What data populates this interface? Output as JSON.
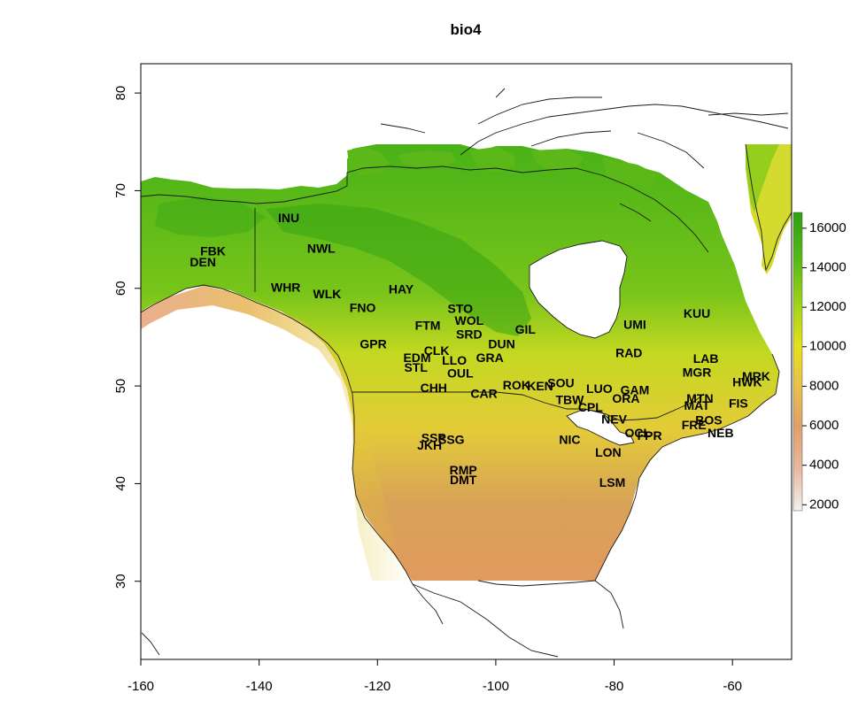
{
  "chart_data": {
    "type": "raster map",
    "title": "bio4",
    "xlim": [
      -160,
      -50
    ],
    "ylim": [
      22,
      83
    ],
    "x_ticks": [
      -160,
      -140,
      -120,
      -100,
      -80,
      -60
    ],
    "x_tick_labels": [
      "-160",
      "-140",
      "-120",
      "-100",
      "-80",
      "-60"
    ],
    "y_ticks": [
      30,
      40,
      50,
      60,
      70,
      80
    ],
    "y_tick_labels": [
      "30",
      "40",
      "50",
      "60",
      "70",
      "80"
    ],
    "legend": {
      "placement": "right",
      "range": [
        1700,
        16800
      ],
      "ticks": [
        2000,
        4000,
        6000,
        8000,
        10000,
        12000,
        14000,
        16000
      ],
      "tick_labels": [
        "2000",
        "4000",
        "6000",
        "8000",
        "10000",
        "12000",
        "14000",
        "16000"
      ],
      "colors": [
        "#f2f2f2",
        "#e8b9a0",
        "#e09f6a",
        "#e6c24a",
        "#e6e01a",
        "#a6d51a",
        "#55bb14",
        "#2f9e14"
      ]
    },
    "sites": [
      {
        "label": "INU",
        "lon": -135,
        "lat": 67.1
      },
      {
        "label": "FBK",
        "lon": -147.8,
        "lat": 63.7
      },
      {
        "label": "DEN",
        "lon": -149.5,
        "lat": 62.6
      },
      {
        "label": "NWL",
        "lon": -129.5,
        "lat": 64.0
      },
      {
        "label": "HAY",
        "lon": -116,
        "lat": 59.8
      },
      {
        "label": "WHR",
        "lon": -135.5,
        "lat": 60.0
      },
      {
        "label": "WLK",
        "lon": -128.5,
        "lat": 59.3
      },
      {
        "label": "FNO",
        "lon": -122.5,
        "lat": 57.9
      },
      {
        "label": "STO",
        "lon": -106,
        "lat": 57.8
      },
      {
        "label": "WOL",
        "lon": -104.5,
        "lat": 56.6
      },
      {
        "label": "FTM",
        "lon": -111.5,
        "lat": 56.1
      },
      {
        "label": "SRD",
        "lon": -104.5,
        "lat": 55.2
      },
      {
        "label": "GIL",
        "lon": -95,
        "lat": 55.7
      },
      {
        "label": "DUN",
        "lon": -99,
        "lat": 54.2
      },
      {
        "label": "GPR",
        "lon": -120.7,
        "lat": 54.2
      },
      {
        "label": "CLK",
        "lon": -110,
        "lat": 53.5
      },
      {
        "label": "EDM",
        "lon": -113.3,
        "lat": 52.8
      },
      {
        "label": "LLO",
        "lon": -107,
        "lat": 52.5
      },
      {
        "label": "STL",
        "lon": -113.5,
        "lat": 51.8
      },
      {
        "label": "OUL",
        "lon": -106,
        "lat": 51.2
      },
      {
        "label": "GRA",
        "lon": -101,
        "lat": 52.8
      },
      {
        "label": "CHH",
        "lon": -110.5,
        "lat": 49.7
      },
      {
        "label": "CAR",
        "lon": -102,
        "lat": 49.1
      },
      {
        "label": "ROK",
        "lon": -96.5,
        "lat": 50.0
      },
      {
        "label": "KEN",
        "lon": -92.5,
        "lat": 49.9
      },
      {
        "label": "SOU",
        "lon": -89,
        "lat": 50.2
      },
      {
        "label": "LUO",
        "lon": -82.5,
        "lat": 49.6
      },
      {
        "label": "TBW",
        "lon": -87.5,
        "lat": 48.5
      },
      {
        "label": "UMI",
        "lon": -76.5,
        "lat": 56.2
      },
      {
        "label": "RAD",
        "lon": -77.5,
        "lat": 53.3
      },
      {
        "label": "KUU",
        "lon": -66,
        "lat": 57.3
      },
      {
        "label": "LAB",
        "lon": -64.5,
        "lat": 52.7
      },
      {
        "label": "MGR",
        "lon": -66,
        "lat": 51.3
      },
      {
        "label": "GAM",
        "lon": -76.5,
        "lat": 49.5
      },
      {
        "label": "ORA",
        "lon": -78,
        "lat": 48.6
      },
      {
        "label": "CPL",
        "lon": -84,
        "lat": 47.7
      },
      {
        "label": "MTN",
        "lon": -65.5,
        "lat": 48.6
      },
      {
        "label": "MAT",
        "lon": -66,
        "lat": 47.9
      },
      {
        "label": "MRK",
        "lon": -56,
        "lat": 50.9
      },
      {
        "label": "HWK",
        "lon": -57.5,
        "lat": 50.3
      },
      {
        "label": "FIS",
        "lon": -59,
        "lat": 48.1
      },
      {
        "label": "FRE",
        "lon": -66.5,
        "lat": 45.9
      },
      {
        "label": "BOS",
        "lon": -64,
        "lat": 46.4
      },
      {
        "label": "NEB",
        "lon": -62,
        "lat": 45.1
      },
      {
        "label": "NEV",
        "lon": -80,
        "lat": 46.5
      },
      {
        "label": "OCL",
        "lon": -76,
        "lat": 45.1
      },
      {
        "label": "FPR",
        "lon": -74,
        "lat": 44.8
      },
      {
        "label": "NIC",
        "lon": -87.5,
        "lat": 44.4
      },
      {
        "label": "LON",
        "lon": -81,
        "lat": 43.1
      },
      {
        "label": "SSP",
        "lon": -110.5,
        "lat": 44.6
      },
      {
        "label": "JKH",
        "lon": -111.2,
        "lat": 43.8
      },
      {
        "label": "SSG",
        "lon": -107.5,
        "lat": 44.4
      },
      {
        "label": "RMP",
        "lon": -105.5,
        "lat": 41.3
      },
      {
        "label": "DMT",
        "lon": -105.5,
        "lat": 40.3
      },
      {
        "label": "LSM",
        "lon": -80.3,
        "lat": 40.0
      }
    ]
  }
}
